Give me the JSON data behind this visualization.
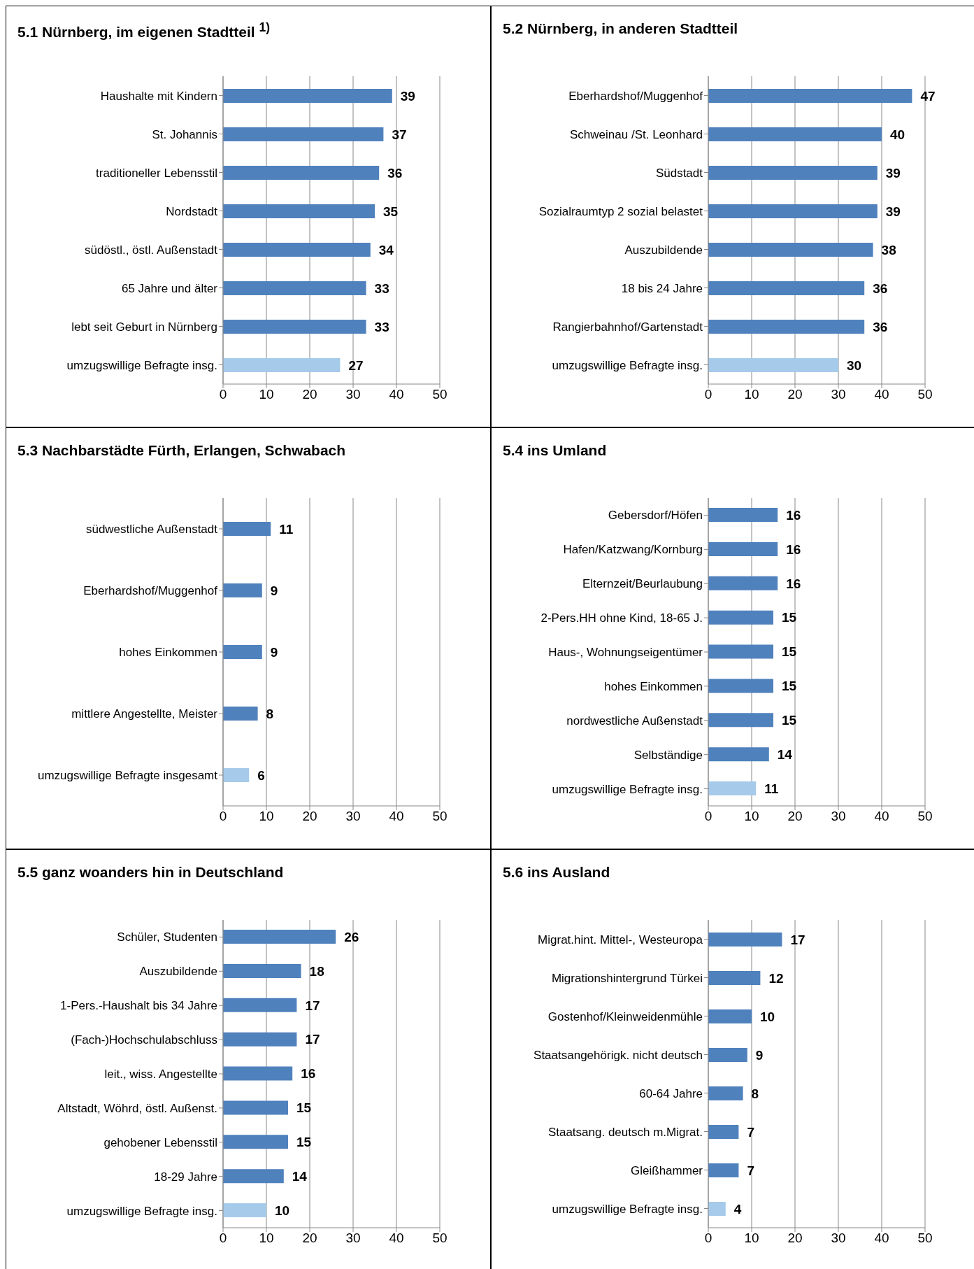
{
  "chart_data": [
    {
      "type": "bar",
      "orientation": "horizontal",
      "title": "5.1 Nürnberg, im eigenen Stadtteil $^{1)}$",
      "categories": [
        "Haushalte mit Kindern",
        "St. Johannis",
        "traditioneller Lebensstil",
        "Nordstadt",
        "südöstl., östl. Außenstadt",
        "65 Jahre und älter",
        "lebt seit Geburt in Nürnberg",
        "umzugswillige Befragte insg."
      ],
      "values": [
        39,
        37,
        36,
        35,
        34,
        33,
        33,
        27
      ],
      "colors": [
        "#4f81bd",
        "#4f81bd",
        "#4f81bd",
        "#4f81bd",
        "#4f81bd",
        "#4f81bd",
        "#4f81bd",
        "#a6cbea"
      ],
      "xlim": [
        0,
        50
      ],
      "xticks": [
        0,
        10,
        20,
        30,
        40,
        50
      ],
      "grid": "x",
      "data_labels": true
    },
    {
      "type": "bar",
      "orientation": "horizontal",
      "title": "5.2 Nürnberg, in anderen Stadtteil",
      "categories": [
        "Eberhardshof/Muggenhof",
        "Schweinau /St. Leonhard",
        "Südstadt",
        "Sozialraumtyp 2 sozial belastet",
        "Auszubildende",
        "18 bis 24 Jahre",
        "Rangierbahnhof/Gartenstadt",
        "umzugswillige Befragte insg."
      ],
      "values": [
        47,
        40,
        39,
        39,
        38,
        36,
        36,
        30
      ],
      "colors": [
        "#4f81bd",
        "#4f81bd",
        "#4f81bd",
        "#4f81bd",
        "#4f81bd",
        "#4f81bd",
        "#4f81bd",
        "#a6cbea"
      ],
      "xlim": [
        0,
        50
      ],
      "xticks": [
        0,
        10,
        20,
        30,
        40,
        50
      ],
      "grid": "x",
      "data_labels": true
    },
    {
      "type": "bar",
      "orientation": "horizontal",
      "title": "5.3 Nachbarstädte Fürth, Erlangen, Schwabach",
      "categories": [
        "südwestliche Außenstadt",
        "Eberhardshof/Muggenhof",
        "hohes Einkommen",
        "mittlere Angestellte, Meister",
        "umzugswillige Befragte insgesamt"
      ],
      "values": [
        11,
        9,
        9,
        8,
        6
      ],
      "colors": [
        "#4f81bd",
        "#4f81bd",
        "#4f81bd",
        "#4f81bd",
        "#a6cbea"
      ],
      "xlim": [
        0,
        50
      ],
      "xticks": [
        0,
        10,
        20,
        30,
        40,
        50
      ],
      "grid": "x",
      "data_labels": true
    },
    {
      "type": "bar",
      "orientation": "horizontal",
      "title": "5.4 ins Umland",
      "categories": [
        "Gebersdorf/Höfen",
        "Hafen/Katzwang/Kornburg",
        "Elternzeit/Beurlaubung",
        "2-Pers.HH ohne Kind, 18-65 J.",
        "Haus-, Wohnungseigentümer",
        "hohes Einkommen",
        "nordwestliche Außenstadt",
        "Selbständige",
        "umzugswillige Befragte insg."
      ],
      "values": [
        16,
        16,
        16,
        15,
        15,
        15,
        15,
        14,
        11
      ],
      "colors": [
        "#4f81bd",
        "#4f81bd",
        "#4f81bd",
        "#4f81bd",
        "#4f81bd",
        "#4f81bd",
        "#4f81bd",
        "#4f81bd",
        "#a6cbea"
      ],
      "xlim": [
        0,
        50
      ],
      "xticks": [
        0,
        10,
        20,
        30,
        40,
        50
      ],
      "grid": "x",
      "data_labels": true
    },
    {
      "type": "bar",
      "orientation": "horizontal",
      "title": "5.5 ganz woanders hin in Deutschland",
      "categories": [
        "Schüler, Studenten",
        "Auszubildende",
        "1-Pers.-Haushalt bis 34 Jahre",
        "(Fach-)Hochschulabschluss",
        "leit., wiss. Angestellte",
        "Altstadt, Wöhrd, östl. Außenst.",
        "gehobener Lebensstil",
        "18-29 Jahre",
        "umzugswillige Befragte insg."
      ],
      "values": [
        26,
        18,
        17,
        17,
        16,
        15,
        15,
        14,
        10
      ],
      "colors": [
        "#4f81bd",
        "#4f81bd",
        "#4f81bd",
        "#4f81bd",
        "#4f81bd",
        "#4f81bd",
        "#4f81bd",
        "#4f81bd",
        "#a6cbea"
      ],
      "xlim": [
        0,
        50
      ],
      "xticks": [
        0,
        10,
        20,
        30,
        40,
        50
      ],
      "grid": "x",
      "data_labels": true
    },
    {
      "type": "bar",
      "orientation": "horizontal",
      "title": "5.6 ins Ausland",
      "categories": [
        "Migrat.hint. Mittel-, Westeuropa",
        "Migrationshintergrund Türkei",
        "Gostenhof/Kleinweidenmühle",
        "Staatsangehörigk. nicht deutsch",
        "60-64 Jahre",
        "Staatsang. deutsch m.Migrat.",
        "Gleißhammer",
        "umzugswillige Befragte insg."
      ],
      "values": [
        17,
        12,
        10,
        9,
        8,
        7,
        7,
        4
      ],
      "colors": [
        "#4f81bd",
        "#4f81bd",
        "#4f81bd",
        "#4f81bd",
        "#4f81bd",
        "#4f81bd",
        "#4f81bd",
        "#a6cbea"
      ],
      "xlim": [
        0,
        50
      ],
      "xticks": [
        0,
        10,
        20,
        30,
        40,
        50
      ],
      "grid": "x",
      "data_labels": true
    }
  ]
}
